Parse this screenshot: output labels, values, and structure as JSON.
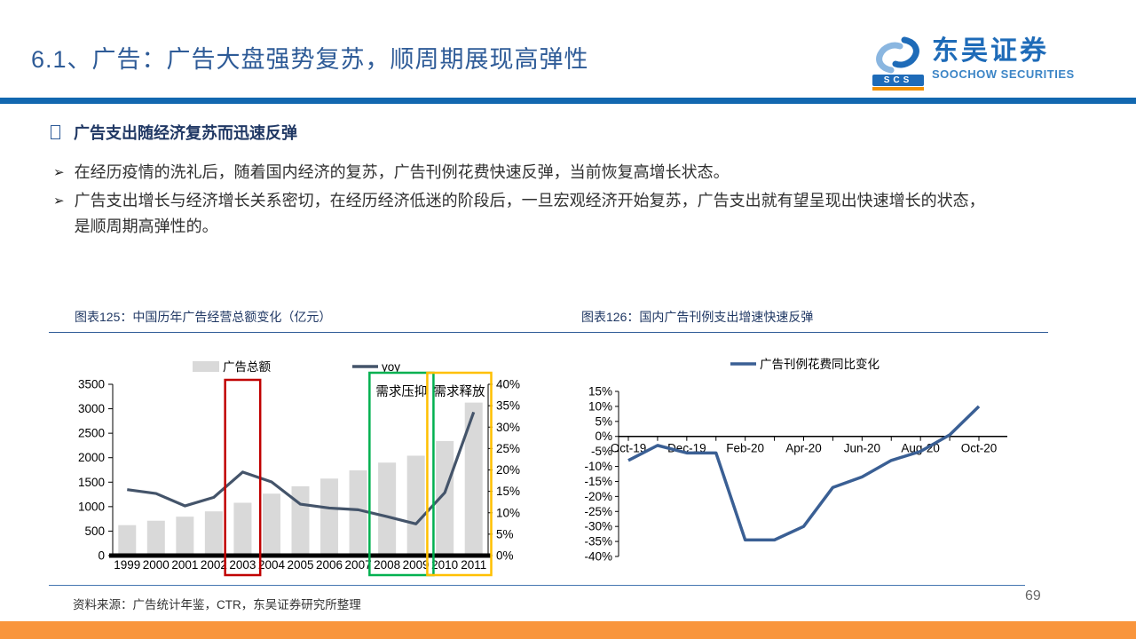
{
  "header": {
    "title": "6.1、广告：广告大盘强势复苏，顺周期展现高弹性",
    "logo": {
      "badge": "SCS",
      "cn": "东吴证券",
      "en": "SOOCHOW SECURITIES"
    }
  },
  "content": {
    "heading": "广告支出随经济复苏而迅速反弹",
    "bullets": [
      {
        "marker": "➢",
        "lines": [
          "在经历疫情的洗礼后，随着国内经济的复苏，广告刊例花费快速反弹，当前恢复高增长状态。"
        ]
      },
      {
        "marker": "➢",
        "lines": [
          "广告支出增长与经济增长关系密切，在经历经济低迷的阶段后，一旦宏观经济开始复苏，广告支出就有望呈现出快速增长的状态，",
          "是顺周期高弹性的。"
        ]
      }
    ]
  },
  "footer": {
    "source": "资料来源：广告统计年鉴，CTR，东吴证券研究所整理",
    "page_number": "69"
  },
  "colors": {
    "accent_blue": "#1268B0",
    "title_blue": "#2E5B97",
    "navy": "#203864",
    "orange_bar": "#F9953C",
    "bar_gray": "#D9D9D9",
    "yoy_line": "#44546A",
    "ctr_line": "#3A5F94",
    "box_red": "#C00000",
    "box_green": "#00B050",
    "box_yellow": "#FFC000"
  },
  "chart_data": [
    {
      "type": "bar",
      "title": "图表125：中国历年广告经营总额变化（亿元）",
      "categories": [
        "1999",
        "2000",
        "2001",
        "2002",
        "2003",
        "2004",
        "2005",
        "2006",
        "2007",
        "2008",
        "2009",
        "2010",
        "2011"
      ],
      "series": [
        {
          "name": "广告总额",
          "type": "bar",
          "axis": "left",
          "color": "#D9D9D9",
          "values": [
            622,
            712,
            795,
            903,
            1079,
            1265,
            1416,
            1573,
            1741,
            1900,
            2041,
            2341,
            3126
          ]
        },
        {
          "name": "yoy",
          "type": "line",
          "axis": "right",
          "color": "#44546A",
          "values": [
            15.4,
            14.5,
            11.6,
            13.6,
            19.5,
            17.2,
            12.0,
            11.1,
            10.7,
            9.1,
            7.4,
            14.7,
            33.5
          ]
        }
      ],
      "left_axis": {
        "min": 0,
        "max": 3500,
        "step": 500
      },
      "right_axis": {
        "min": 0,
        "max": 40,
        "step": 5,
        "format": "percent"
      },
      "annotations": [
        {
          "type": "box",
          "color": "#C00000",
          "from": "2003",
          "to": "2003",
          "label": ""
        },
        {
          "type": "box",
          "color": "#00B050",
          "from": "2008",
          "to": "2009",
          "label": "需求压抑"
        },
        {
          "type": "box",
          "color": "#FFC000",
          "from": "2010",
          "to": "2011",
          "label": "需求释放"
        }
      ],
      "legend_position": "top",
      "grid": false
    },
    {
      "type": "line",
      "title": "图表126：国内广告刊例支出增速快速反弹",
      "series_name": "广告刊例花费同比变化",
      "x": [
        "Oct-19",
        "Nov-19",
        "Dec-19",
        "Jan-20",
        "Feb-20",
        "Mar-20",
        "Apr-20",
        "May-20",
        "Jun-20",
        "Jul-20",
        "Aug-20",
        "Sep-20",
        "Oct-20"
      ],
      "values_pct": [
        -8,
        -3,
        -5.5,
        -5.5,
        -34.5,
        -34.5,
        -30,
        -17,
        -13.5,
        -8,
        -5,
        0.5,
        10
      ],
      "x_tick_labels": [
        "Oct-19",
        "Dec-19",
        "Feb-20",
        "Apr-20",
        "Jun-20",
        "Aug-20",
        "Oct-20"
      ],
      "y_axis": {
        "min": -40,
        "max": 15,
        "step": 5,
        "format": "percent"
      },
      "line_color": "#3A5F94",
      "legend_position": "top",
      "grid": false
    }
  ]
}
